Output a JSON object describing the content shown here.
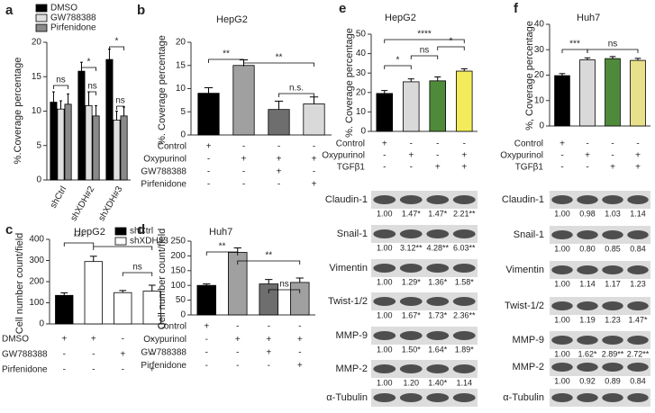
{
  "chart_data": [
    {
      "type": "bar",
      "panel": "a",
      "ylabel": "%.Coverage percentage",
      "categories": [
        "shCtrl",
        "shXDH#2",
        "shXDH#3"
      ],
      "series": [
        {
          "name": "DMSO",
          "color": "#000000",
          "values": [
            11.3,
            15.8,
            17.5
          ],
          "errors": [
            1.5,
            1.3,
            1.5
          ]
        },
        {
          "name": "GW788388",
          "color": "#e0e0e0",
          "values": [
            10.3,
            10.8,
            8.7
          ],
          "errors": [
            1.2,
            2,
            1.3
          ]
        },
        {
          "name": "Pirfenidone",
          "color": "#8a8a8a",
          "values": [
            11,
            9.3,
            9.3
          ],
          "errors": [
            1.5,
            1.5,
            1.3
          ]
        }
      ],
      "ylim": [
        0,
        20
      ],
      "yticks": [
        0,
        5,
        10,
        15,
        20
      ],
      "legend": "top-left",
      "annotations": [
        "ns",
        "*",
        "ns",
        "*",
        "ns"
      ]
    },
    {
      "type": "bar",
      "panel": "b",
      "title": "HepG2",
      "ylabel": "%. Coverage percentage",
      "values": [
        9,
        15,
        5.5,
        6.7
      ],
      "errors": [
        1.2,
        1.2,
        1.8,
        1.5
      ],
      "colors": [
        "#000000",
        "#a0a0a0",
        "#6e6e6e",
        "#d9d9d9"
      ],
      "ylim": [
        0,
        20
      ],
      "yticks": [
        0,
        5,
        10,
        15,
        20
      ],
      "conditions": [
        {
          "name": "Control",
          "marks": [
            "+",
            "-",
            "-",
            "-"
          ]
        },
        {
          "name": "Oxypurinol",
          "marks": [
            "-",
            "+",
            "+",
            "+"
          ]
        },
        {
          "name": "GW788388",
          "marks": [
            "-",
            "-",
            "+",
            "-"
          ]
        },
        {
          "name": "Pirfenidone",
          "marks": [
            "-",
            "-",
            "-",
            "+"
          ]
        }
      ],
      "annotations": [
        "**",
        "**",
        "n.s."
      ]
    },
    {
      "type": "bar",
      "panel": "c",
      "title": "HepG2",
      "ylabel": "Cell number count/field",
      "series": [
        {
          "name": "shCtrl",
          "color": "#000000",
          "values": [
            135,
            null,
            null,
            null
          ],
          "errors": [
            12,
            null,
            null,
            null
          ]
        },
        {
          "name": "shXDH#3",
          "color": "#ffffff",
          "values": [
            null,
            295,
            148,
            155
          ],
          "errors": [
            null,
            25,
            10,
            28
          ]
        }
      ],
      "ylim": [
        0,
        400
      ],
      "yticks": [
        0,
        100,
        200,
        300,
        400
      ],
      "legend": "top-right",
      "conditions": [
        {
          "name": "DMSO",
          "marks": [
            "+",
            "+",
            "-",
            "-"
          ]
        },
        {
          "name": "GW788388",
          "marks": [
            "-",
            "-",
            "+",
            "-"
          ]
        },
        {
          "name": "Pirfenidone",
          "marks": [
            "-",
            "-",
            "-",
            "+"
          ]
        }
      ],
      "annotations": [
        "***",
        "**",
        "ns"
      ]
    },
    {
      "type": "bar",
      "panel": "d",
      "title": "Huh7",
      "ylabel": "Cell number count/field",
      "values": [
        100,
        212,
        105,
        110
      ],
      "errors": [
        5,
        15,
        15,
        15
      ],
      "colors": [
        "#000000",
        "#a0a0a0",
        "#6e6e6e",
        "#a0a0a0"
      ],
      "ylim": [
        0,
        250
      ],
      "yticks": [
        0,
        50,
        100,
        150,
        200,
        250
      ],
      "conditions": [
        {
          "name": "Control",
          "marks": [
            "+",
            "-",
            "-",
            "-"
          ]
        },
        {
          "name": "Oxypurinol",
          "marks": [
            "-",
            "+",
            "+",
            "+"
          ]
        },
        {
          "name": "GW788388",
          "marks": [
            "-",
            "-",
            "+",
            "-"
          ]
        },
        {
          "name": "Pirfenidone",
          "marks": [
            "-",
            "-",
            "-",
            "+"
          ]
        }
      ],
      "annotations": [
        "**",
        "**",
        "ns"
      ]
    },
    {
      "type": "bar",
      "panel": "e",
      "title": "HepG2",
      "ylabel": "%. Coverage percentage",
      "values": [
        19.5,
        25.5,
        26,
        31
      ],
      "errors": [
        1.5,
        1.5,
        2,
        1.2
      ],
      "colors": [
        "#000000",
        "#d9d9d9",
        "#4f8a3a",
        "#f2ec5a"
      ],
      "ylim": [
        0,
        50
      ],
      "yticks": [
        0,
        10,
        20,
        30,
        40,
        50
      ],
      "conditions": [
        {
          "name": "Control",
          "marks": [
            "+",
            "-",
            "-",
            "-"
          ]
        },
        {
          "name": "Oxypurinol",
          "marks": [
            "-",
            "+",
            "-",
            "+"
          ]
        },
        {
          "name": "TGFβ1",
          "marks": [
            "-",
            "-",
            "+",
            "+"
          ]
        }
      ],
      "annotations": [
        "****",
        "*",
        "ns",
        "*"
      ]
    },
    {
      "type": "bar",
      "panel": "f",
      "title": "Huh7",
      "ylabel": "%, Coverage percentage",
      "values": [
        19.8,
        26,
        26.5,
        25.8
      ],
      "errors": [
        0.8,
        0.8,
        0.8,
        0.8
      ],
      "colors": [
        "#000000",
        "#d9d9d9",
        "#4f8a3a",
        "#e8e08a"
      ],
      "ylim": [
        0,
        40
      ],
      "yticks": [
        0,
        10,
        20,
        30,
        40
      ],
      "conditions": [
        {
          "name": "Control",
          "marks": [
            "+",
            "-",
            "-",
            "-"
          ]
        },
        {
          "name": "Oxypurinol",
          "marks": [
            "-",
            "+",
            "-",
            "+"
          ]
        },
        {
          "name": "TGFβ1",
          "marks": [
            "-",
            "-",
            "+",
            "+"
          ]
        }
      ],
      "annotations": [
        "***",
        "ns"
      ]
    }
  ],
  "blots": [
    {
      "rows": [
        {
          "label": "Claudin-1",
          "values": [
            "1.00",
            "1.47*",
            "1.47*",
            "2.21**"
          ]
        },
        {
          "label": "Snail-1",
          "values": [
            "1.00",
            "3.12**",
            "4.28**",
            "6.03**"
          ]
        },
        {
          "label": "Vimentin",
          "values": [
            "1.00",
            "1.29*",
            "1.36*",
            "1.58*"
          ]
        },
        {
          "label": "Twist-1/2",
          "values": [
            "1.00",
            "1.67*",
            "1.73*",
            "2.36**"
          ]
        },
        {
          "label": "MMP-9",
          "values": [
            "1.00",
            "1.50*",
            "1.64*",
            "1.89*"
          ]
        },
        {
          "label": "MMP-2",
          "values": [
            "1.00",
            "1.20",
            "1.40*",
            "1.14"
          ]
        },
        {
          "label": "α-Tubulin",
          "values": []
        }
      ]
    },
    {
      "rows": [
        {
          "label": "Claudin-1",
          "values": [
            "1.00",
            "0.98",
            "1.03",
            "1.14"
          ]
        },
        {
          "label": "Snail-1",
          "values": [
            "1.00",
            "0.80",
            "0.85",
            "0.84"
          ]
        },
        {
          "label": "Vimentin",
          "values": [
            "1.00",
            "1.14",
            "1.17",
            "1.23"
          ]
        },
        {
          "label": "Twist-1/2",
          "values": [
            "1.00",
            "1.19",
            "1.23",
            "1.47*"
          ]
        },
        {
          "label": "MMP-9",
          "values": [
            "1.00",
            "1.62*",
            "2.89**",
            "2.72**"
          ]
        },
        {
          "label": "MMP-2",
          "values": [
            "1.00",
            "0.92",
            "0.89",
            "0.84"
          ]
        },
        {
          "label": "α-Tubulin",
          "values": []
        }
      ]
    }
  ]
}
